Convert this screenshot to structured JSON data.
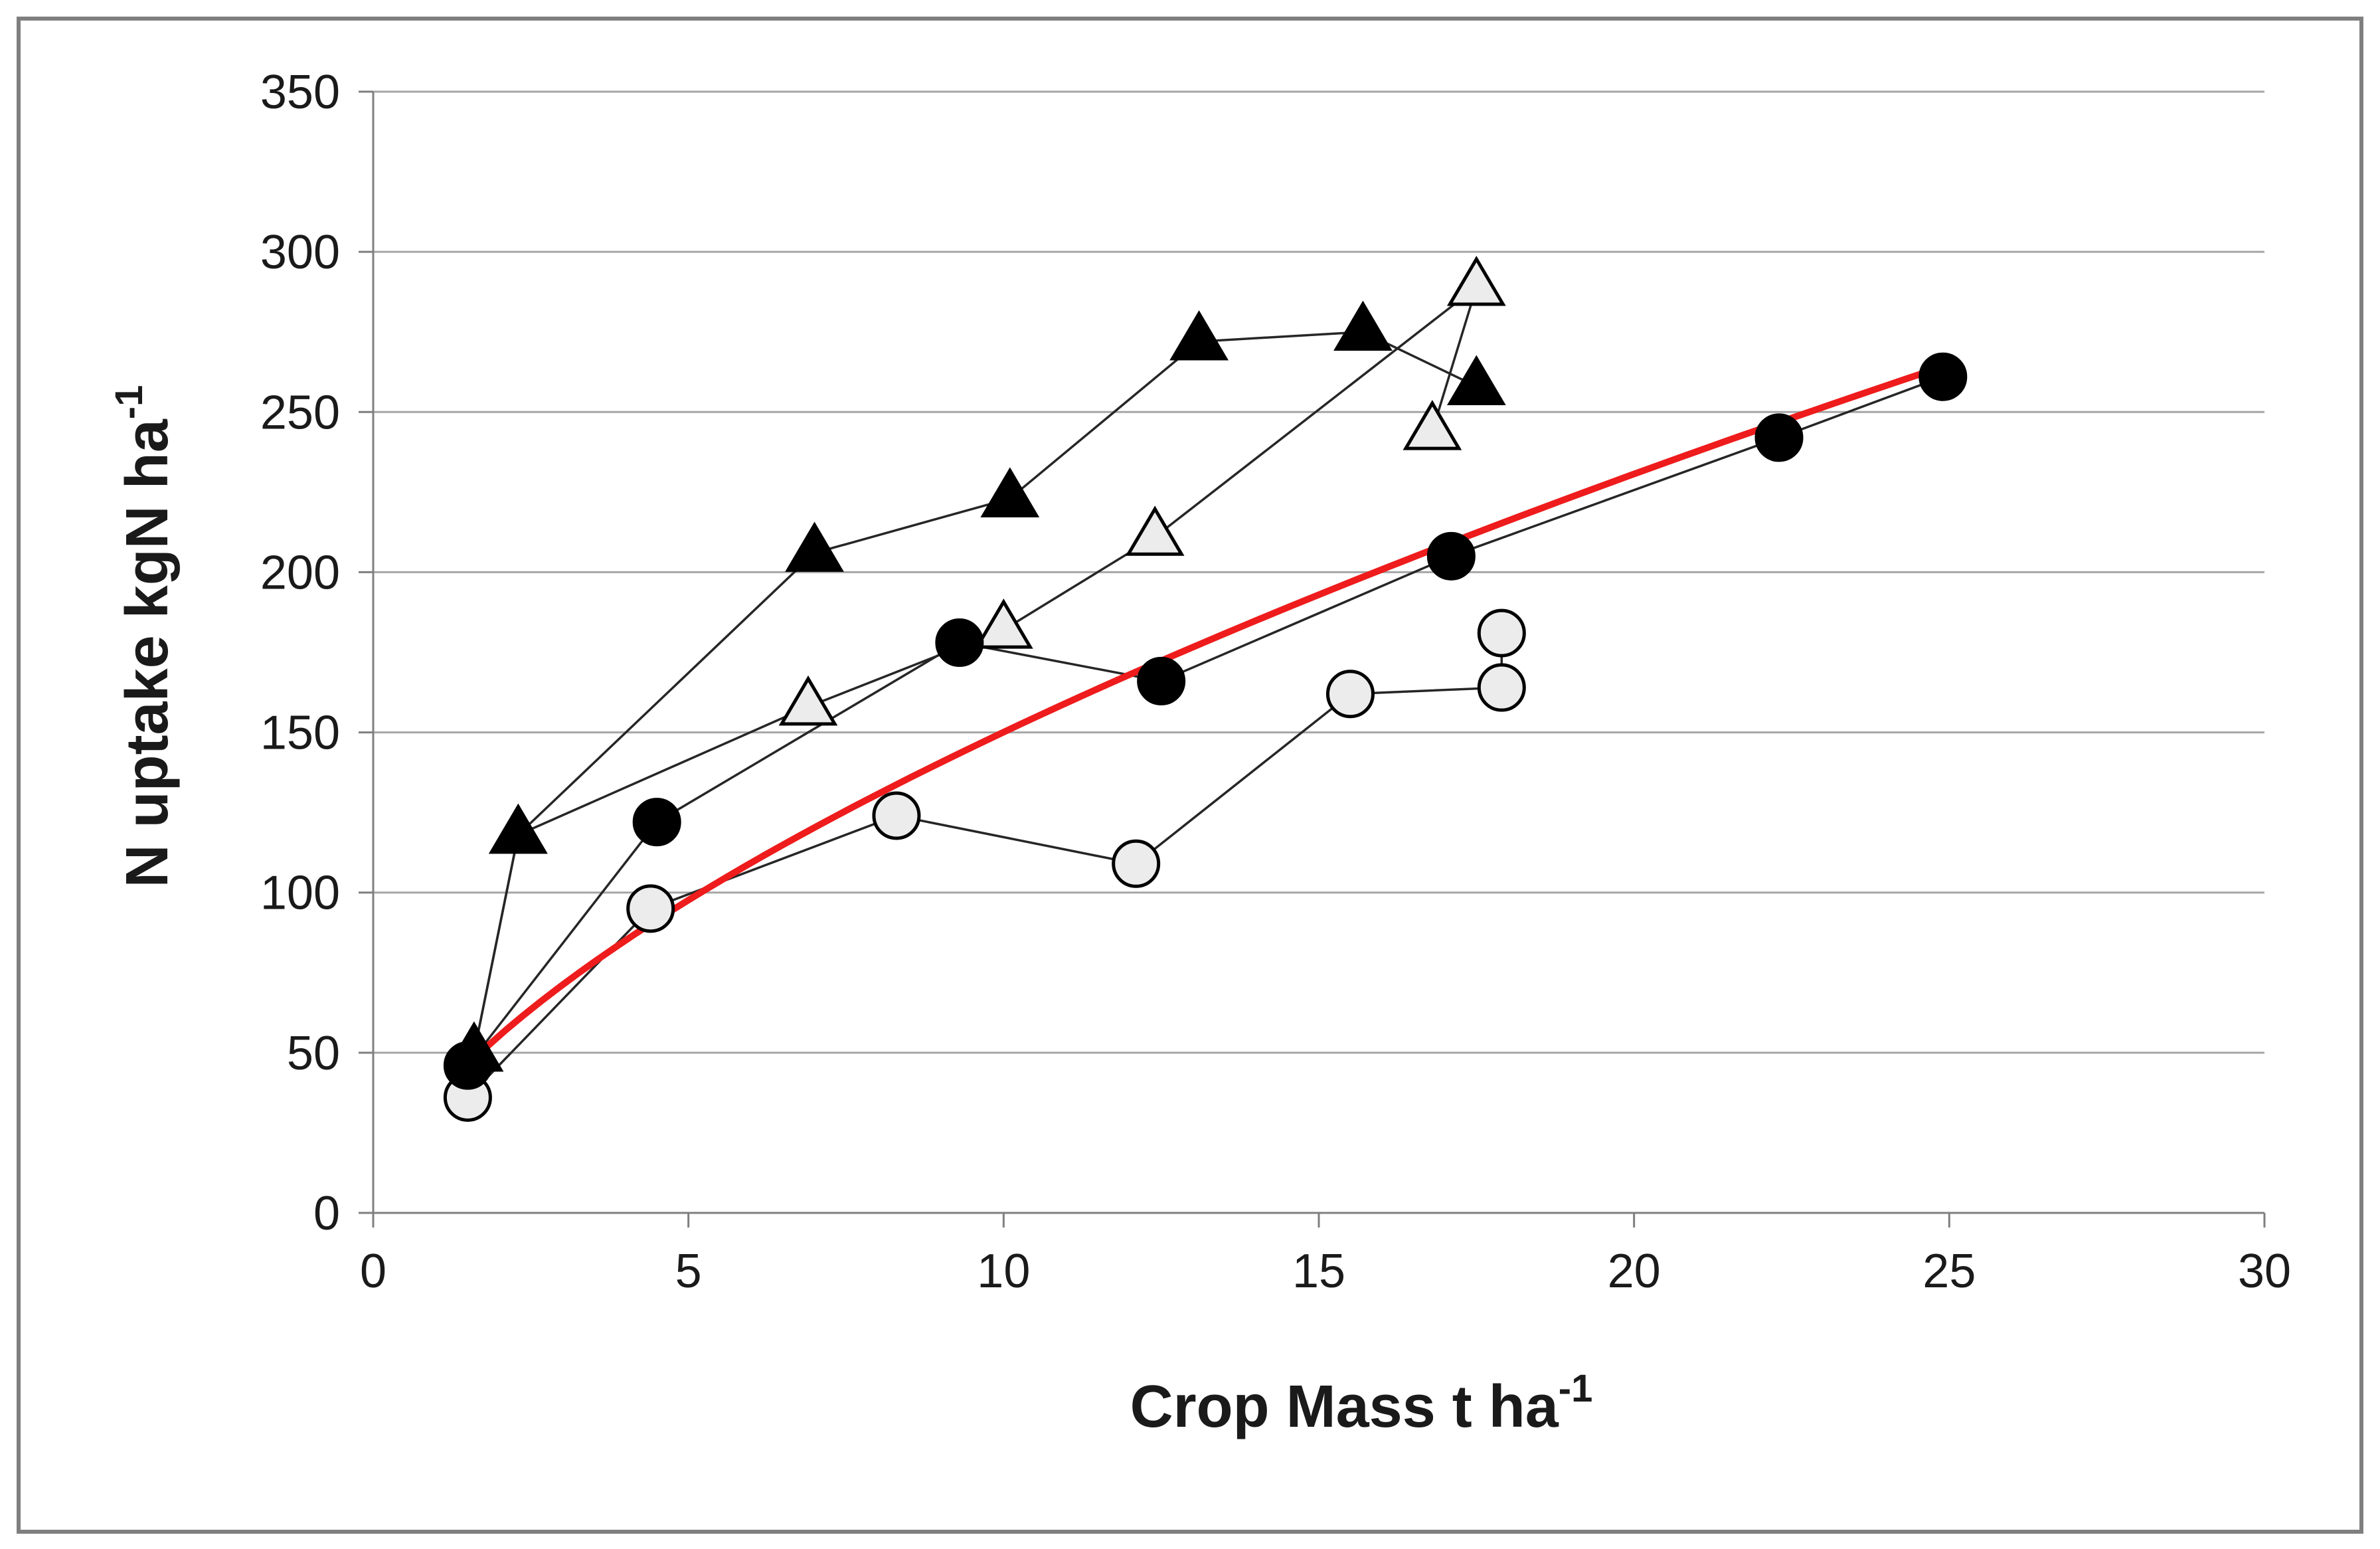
{
  "chart_data": {
    "type": "scatter",
    "xlabel": "Crop Mass t ha",
    "xlabel_sup": "-1",
    "ylabel": "N uptake kgN ha",
    "ylabel_sup": "-1",
    "xlim": [
      0,
      30
    ],
    "ylim": [
      0,
      350
    ],
    "xticks": [
      0,
      5,
      10,
      15,
      20,
      25,
      30
    ],
    "yticks": [
      0,
      50,
      100,
      150,
      200,
      250,
      300,
      350
    ],
    "grid": "horizontal",
    "colors": {
      "frame": "#7f7f7f",
      "grid": "#a6a6a6",
      "line": "#262626",
      "trend": "#ee1c1c",
      "filled": "#000000",
      "open": "#ececec",
      "outline": "#000000"
    },
    "series": [
      {
        "name": "filled-triangles",
        "marker": "triangle",
        "fill": "filled",
        "connected": true,
        "points": [
          [
            1.6,
            50
          ],
          [
            2.3,
            118
          ],
          [
            7.0,
            206
          ],
          [
            10.1,
            223
          ],
          [
            13.1,
            272
          ],
          [
            15.7,
            275
          ],
          [
            17.5,
            258
          ]
        ]
      },
      {
        "name": "open-triangles",
        "marker": "triangle",
        "fill": "open",
        "connected": true,
        "points": [
          [
            1.6,
            50
          ],
          [
            2.3,
            118
          ],
          [
            6.9,
            158
          ],
          [
            10.0,
            182
          ],
          [
            12.4,
            211
          ],
          [
            17.5,
            289
          ],
          [
            16.8,
            244
          ]
        ]
      },
      {
        "name": "filled-circles",
        "marker": "circle",
        "fill": "filled",
        "connected": true,
        "points": [
          [
            1.5,
            46
          ],
          [
            4.5,
            122
          ],
          [
            9.3,
            178
          ],
          [
            12.5,
            166
          ],
          [
            17.1,
            205
          ],
          [
            22.3,
            242
          ],
          [
            24.9,
            261
          ]
        ]
      },
      {
        "name": "open-circles",
        "marker": "circle",
        "fill": "open",
        "connected": true,
        "points": [
          [
            1.5,
            36
          ],
          [
            4.4,
            95
          ],
          [
            8.3,
            124
          ],
          [
            12.1,
            109
          ],
          [
            15.5,
            162
          ],
          [
            17.9,
            164
          ],
          [
            17.9,
            181
          ]
        ]
      }
    ],
    "trendline": {
      "name": "power-fit",
      "form": "y = a * x^b",
      "a": 36.0,
      "b": 0.62,
      "x_range": [
        1.5,
        24.9
      ]
    }
  }
}
